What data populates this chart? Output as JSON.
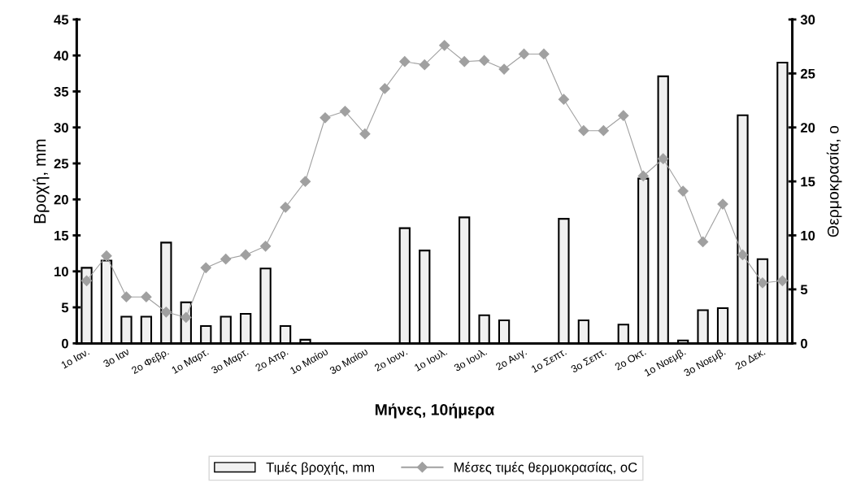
{
  "chart_data": {
    "type": "bar",
    "categories": [
      "1o Ιαν.",
      null,
      "3o Ιαν",
      null,
      "2o Φεβρ.",
      null,
      "1o Μαρτ.",
      null,
      "3o Μαρτ.",
      null,
      "2o Απρ.",
      null,
      "1o Μαίου",
      null,
      "3o Μαίου",
      null,
      "2o Ιουν.",
      null,
      "1o Ιουλ.",
      null,
      "3o Ιουλ.",
      null,
      "2o Αυγ.",
      null,
      "1o Σεπτ.",
      null,
      "3o Σεπτ.",
      null,
      "2o Οκτ.",
      null,
      "1o Νοεμβ.",
      null,
      "3o Νοεμβ.",
      null,
      "2o Δεκ.",
      null
    ],
    "series": [
      {
        "name": "Τιμές βροχής, mm",
        "color": "#f0f0f0",
        "values": [
          10.5,
          11.5,
          3.7,
          3.7,
          14.0,
          5.7,
          2.4,
          3.7,
          4.1,
          10.4,
          2.4,
          0.5,
          0,
          0,
          0,
          0,
          16.0,
          12.9,
          0,
          17.5,
          3.9,
          3.2,
          0,
          0,
          17.3,
          3.2,
          0,
          2.6,
          22.9,
          37.1,
          0.4,
          4.6,
          4.9,
          31.7,
          11.7,
          39.0
        ]
      },
      {
        "name": "Μέσες τιμές θερμοκρασίας, oC",
        "type": "line",
        "axis": "y2",
        "color": "#a0a0a0",
        "marker": "diamond",
        "line_style": "solid",
        "values": [
          5.8,
          8.1,
          4.3,
          4.3,
          2.9,
          2.4,
          7.0,
          7.8,
          8.2,
          9.0,
          12.6,
          15.0,
          20.9,
          21.5,
          19.4,
          23.6,
          26.1,
          25.8,
          27.6,
          26.1,
          26.2,
          25.4,
          26.8,
          26.8,
          22.6,
          19.7,
          19.7,
          21.1,
          15.5,
          17.1,
          14.1,
          9.4,
          12.9,
          8.2,
          5.6,
          5.8
        ]
      }
    ],
    "xlabel": "Μήνες, 10ήμερα",
    "ylabel": "Βροχή, mm",
    "y2label": "Θερμοκρασία, o",
    "ylim": [
      0,
      45
    ],
    "yticks": [
      0,
      5,
      10,
      15,
      20,
      25,
      30,
      35,
      40,
      45
    ],
    "y2lim": [
      0,
      30
    ],
    "y2ticks": [
      0,
      5,
      10,
      15,
      20,
      25,
      30
    ],
    "grid": false,
    "legend": "bottom"
  }
}
